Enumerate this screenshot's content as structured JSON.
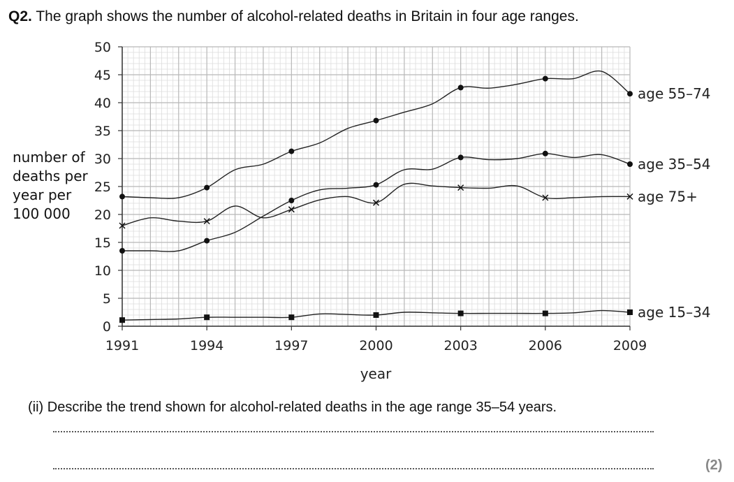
{
  "question": {
    "number": "Q2.",
    "text": "The graph shows the number of alcohol-related deaths in Britain in four age ranges."
  },
  "chart_data": {
    "type": "line",
    "xlabel": "year",
    "ylabel_lines": [
      "number of",
      "deaths per",
      "year per",
      "100 000"
    ],
    "xlim": [
      1991,
      2009
    ],
    "ylim": [
      0,
      50
    ],
    "x_ticks": [
      1991,
      1994,
      1997,
      2000,
      2003,
      2006,
      2009
    ],
    "y_ticks": [
      0,
      5,
      10,
      15,
      20,
      25,
      30,
      35,
      40,
      45,
      50
    ],
    "grid": true,
    "series": [
      {
        "name": "age 55–74",
        "marker": "dot",
        "x": [
          1991,
          1992,
          1993,
          1994,
          1995,
          1996,
          1997,
          1998,
          1999,
          2000,
          2001,
          2002,
          2003,
          2004,
          2005,
          2006,
          2007,
          2008,
          2009
        ],
        "y": [
          23.2,
          23.0,
          23.0,
          24.8,
          28.0,
          29.0,
          31.3,
          32.8,
          35.4,
          36.8,
          38.3,
          39.8,
          42.7,
          42.6,
          43.3,
          44.3,
          44.3,
          45.6,
          41.6
        ],
        "markers_at": [
          1991,
          1994,
          1997,
          2000,
          2003,
          2006,
          2009
        ]
      },
      {
        "name": "age 35–54",
        "marker": "dot",
        "x": [
          1991,
          1992,
          1993,
          1994,
          1995,
          1996,
          1997,
          1998,
          1999,
          2000,
          2001,
          2002,
          2003,
          2004,
          2005,
          2006,
          2007,
          2008,
          2009
        ],
        "y": [
          13.5,
          13.5,
          13.5,
          15.3,
          16.8,
          19.7,
          22.5,
          24.4,
          24.7,
          25.3,
          28.0,
          28.1,
          30.2,
          29.8,
          30.0,
          30.9,
          30.2,
          30.7,
          29.0
        ],
        "markers_at": [
          1991,
          1994,
          1997,
          2000,
          2003,
          2006,
          2009
        ]
      },
      {
        "name": "age 75+",
        "marker": "cross",
        "x": [
          1991,
          1992,
          1993,
          1994,
          1995,
          1996,
          1997,
          1998,
          1999,
          2000,
          2001,
          2002,
          2003,
          2004,
          2005,
          2006,
          2007,
          2008,
          2009
        ],
        "y": [
          18.0,
          19.4,
          18.8,
          18.8,
          21.5,
          19.4,
          20.9,
          22.6,
          23.2,
          22.1,
          25.4,
          25.1,
          24.8,
          24.7,
          25.1,
          23.0,
          23.0,
          23.2,
          23.2
        ],
        "markers_at": [
          1991,
          1994,
          1997,
          2000,
          2003,
          2006,
          2009
        ]
      },
      {
        "name": "age 15–34",
        "marker": "square",
        "x": [
          1991,
          1992,
          1993,
          1994,
          1995,
          1996,
          1997,
          1998,
          1999,
          2000,
          2001,
          2002,
          2003,
          2004,
          2005,
          2006,
          2007,
          2008,
          2009
        ],
        "y": [
          1.1,
          1.2,
          1.3,
          1.6,
          1.6,
          1.6,
          1.6,
          2.2,
          2.1,
          2.0,
          2.5,
          2.4,
          2.3,
          2.3,
          2.3,
          2.3,
          2.4,
          2.8,
          2.5
        ],
        "markers_at": [
          1991,
          1994,
          1997,
          2000,
          2003,
          2006,
          2009
        ]
      }
    ]
  },
  "subquestion": {
    "text": "(ii)  Describe the trend shown for alcohol-related deaths in the age range 35–54 years."
  },
  "marks": "(2)"
}
